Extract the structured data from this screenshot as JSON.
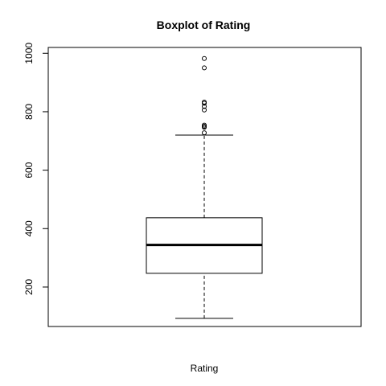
{
  "chart_data": {
    "type": "boxplot",
    "title": "Boxplot of Rating",
    "xlabel": "Rating",
    "ylabel": "",
    "ylim": [
      65,
      1020
    ],
    "y_ticks": [
      200,
      400,
      600,
      800,
      1000
    ],
    "box": {
      "whisker_low": 93,
      "q1": 247,
      "median": 344,
      "q3": 437,
      "whisker_high": 720
    },
    "outliers": [
      728,
      747,
      750,
      754,
      806,
      818,
      829,
      833,
      950,
      982
    ],
    "grid": false,
    "legend": "none"
  }
}
